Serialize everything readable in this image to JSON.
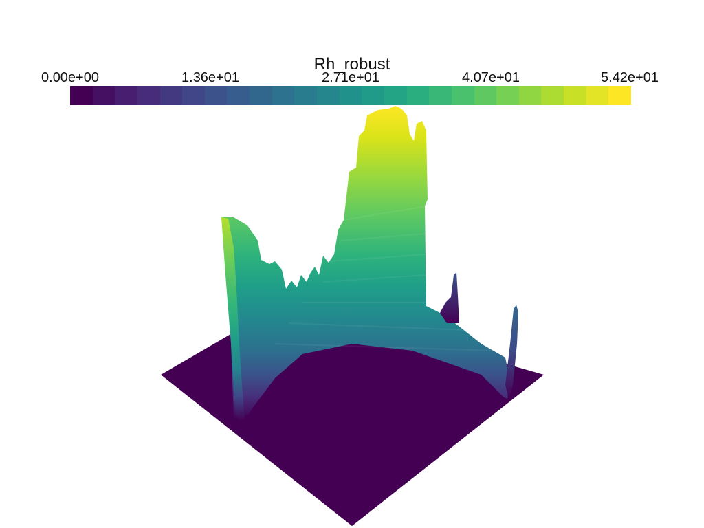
{
  "scalar_bar": {
    "title": "Rh_robust",
    "range": [
      0.0,
      54.2
    ],
    "tick_labels": [
      "0.00e+00",
      "1.36e+01",
      "2.71e+01",
      "4.07e+01",
      "5.42e+01"
    ],
    "colormap": "viridis",
    "num_colors": 25
  },
  "colors": {
    "background": "#ffffff",
    "floor": "#440154",
    "low": "#440154",
    "high": "#fde725"
  }
}
